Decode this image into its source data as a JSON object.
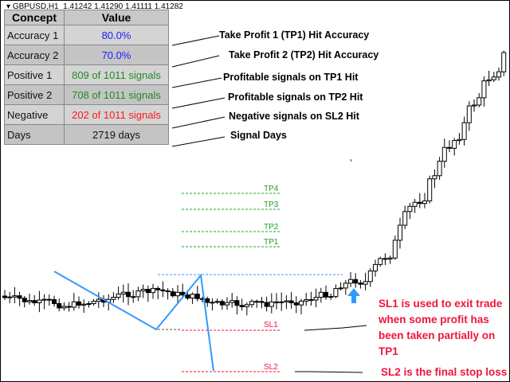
{
  "header": {
    "symbol": "GBPUSD,H1",
    "prices": "1.41242 1.41290 1.41111 1.41282"
  },
  "table": {
    "headers": [
      "Concept",
      "Value"
    ],
    "rows": [
      {
        "concept": "Accuracy 1",
        "value": "80.0%",
        "color": "#1a1aff"
      },
      {
        "concept": "Accuracy 2",
        "value": "70.0%",
        "color": "#1a1aff"
      },
      {
        "concept": "Positive 1",
        "value": "809 of 1011 signals",
        "color": "#228b22"
      },
      {
        "concept": "Positive 2",
        "value": "708 of 1011 signals",
        "color": "#228b22"
      },
      {
        "concept": "Negative",
        "value": "202 of 1011 signals",
        "color": "#ff1a1a"
      },
      {
        "concept": "Days",
        "value": "2719 days",
        "color": "#111111"
      }
    ]
  },
  "notes": [
    "Take Profit 1 (TP1)  Hit Accuracy",
    "Take Profit 2 (TP2)  Hit Accuracy",
    "Profitable signals on TP1 Hit",
    "Profitable signals on TP2 Hit",
    "Negative signals on SL2 Hit",
    "Signal Days"
  ],
  "levels": {
    "tp4": "TP4",
    "tp3": "TP3",
    "tp2": "TP2",
    "tp1": "TP1",
    "sl1": "SL1",
    "sl2": "SL2"
  },
  "explain": {
    "sl1": "SL1 is used to exit trade when some profit has been taken partially on TP1",
    "sl2": "SL2 is the final stop loss"
  },
  "colors": {
    "tp": "#22a022",
    "sl": "#f0143c",
    "signal": "#3399ff"
  }
}
